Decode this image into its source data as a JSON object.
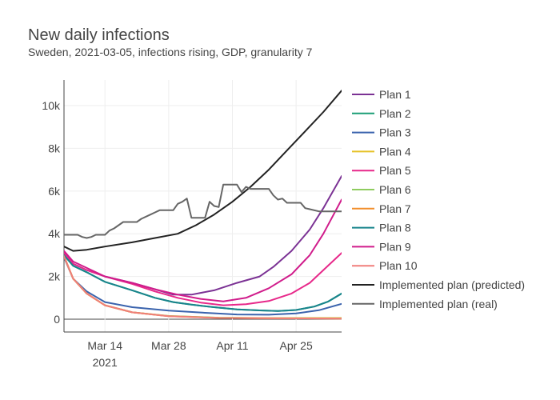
{
  "chart_data": {
    "type": "line",
    "title": "New daily infections",
    "subtitle": "Sweden, 2021-03-05, infections rising, GDP, granularity 7",
    "xlabel": "",
    "ylabel": "",
    "x_axis": {
      "type": "date",
      "range": [
        "2021-03-05",
        "2021-05-05"
      ],
      "ticks": [
        {
          "date": "2021-03-14",
          "label": "Mar 14",
          "sublabel": "2021"
        },
        {
          "date": "2021-03-28",
          "label": "Mar 28",
          "sublabel": ""
        },
        {
          "date": "2021-04-11",
          "label": "Apr 11",
          "sublabel": ""
        },
        {
          "date": "2021-04-25",
          "label": "Apr 25",
          "sublabel": ""
        }
      ]
    },
    "y_axis": {
      "range": [
        -600,
        11200
      ],
      "ticks": [
        {
          "value": 0,
          "label": "0"
        },
        {
          "value": 2000,
          "label": "2k"
        },
        {
          "value": 4000,
          "label": "4k"
        },
        {
          "value": 6000,
          "label": "6k"
        },
        {
          "value": 8000,
          "label": "8k"
        },
        {
          "value": 10000,
          "label": "10k"
        }
      ]
    },
    "grid": true,
    "legend_position": "right",
    "series": [
      {
        "name": "Plan 1",
        "color": "#7b3294",
        "x": [
          "2021-03-05",
          "2021-03-07",
          "2021-03-10",
          "2021-03-14",
          "2021-03-20",
          "2021-03-25",
          "2021-03-29",
          "2021-04-02",
          "2021-04-07",
          "2021-04-12",
          "2021-04-17",
          "2021-04-20",
          "2021-04-24",
          "2021-04-28",
          "2021-05-01",
          "2021-05-05"
        ],
        "y": [
          3150,
          2600,
          2300,
          2000,
          1700,
          1400,
          1150,
          1150,
          1350,
          1700,
          2000,
          2450,
          3200,
          4200,
          5200,
          6700
        ]
      },
      {
        "name": "Plan 2",
        "color": "#1b9e77",
        "x": [
          "2021-03-05",
          "2021-03-07",
          "2021-03-10",
          "2021-03-14",
          "2021-03-20",
          "2021-03-25",
          "2021-03-29",
          "2021-04-02",
          "2021-04-07",
          "2021-04-12",
          "2021-04-17",
          "2021-04-21",
          "2021-04-25",
          "2021-04-29",
          "2021-05-02",
          "2021-05-05"
        ],
        "y": [
          3000,
          2500,
          2200,
          1750,
          1350,
          1000,
          800,
          680,
          560,
          460,
          410,
          380,
          430,
          590,
          820,
          1200
        ]
      },
      {
        "name": "Plan 3",
        "color": "#3a63ad",
        "x": [
          "2021-03-05",
          "2021-03-07",
          "2021-03-10",
          "2021-03-14",
          "2021-03-20",
          "2021-03-28",
          "2021-04-05",
          "2021-04-12",
          "2021-04-19",
          "2021-04-25",
          "2021-04-30",
          "2021-05-05"
        ],
        "y": [
          2900,
          1900,
          1300,
          800,
          560,
          400,
          300,
          220,
          210,
          270,
          420,
          720
        ]
      },
      {
        "name": "Plan 4",
        "color": "#e6c229",
        "x": [
          "2021-03-05",
          "2021-03-07",
          "2021-03-10",
          "2021-03-14",
          "2021-03-20",
          "2021-03-28",
          "2021-04-08",
          "2021-04-20",
          "2021-05-05"
        ],
        "y": [
          2950,
          1900,
          1200,
          650,
          320,
          150,
          70,
          50,
          55
        ]
      },
      {
        "name": "Plan 5",
        "color": "#e7298a",
        "x": [
          "2021-03-05",
          "2021-03-07",
          "2021-03-10",
          "2021-03-14",
          "2021-03-20",
          "2021-03-25",
          "2021-03-30",
          "2021-04-04",
          "2021-04-09",
          "2021-04-14",
          "2021-04-19",
          "2021-04-24",
          "2021-04-28",
          "2021-05-01",
          "2021-05-05"
        ],
        "y": [
          3100,
          2600,
          2300,
          2000,
          1650,
          1300,
          1000,
          780,
          650,
          700,
          850,
          1200,
          1700,
          2300,
          3100
        ]
      },
      {
        "name": "Plan 6",
        "color": "#8fcc5f",
        "x": [
          "2021-03-05",
          "2021-03-07",
          "2021-03-10",
          "2021-03-14",
          "2021-03-20",
          "2021-03-28",
          "2021-04-08",
          "2021-04-20",
          "2021-05-05"
        ],
        "y": [
          2950,
          1900,
          1200,
          650,
          320,
          150,
          70,
          45,
          40
        ]
      },
      {
        "name": "Plan 7",
        "color": "#f28e2b",
        "x": [
          "2021-03-05",
          "2021-03-07",
          "2021-03-10",
          "2021-03-14",
          "2021-03-20",
          "2021-03-28",
          "2021-04-08",
          "2021-04-20",
          "2021-05-05"
        ],
        "y": [
          2950,
          1900,
          1200,
          650,
          320,
          140,
          60,
          40,
          30
        ]
      },
      {
        "name": "Plan 8",
        "color": "#18848c",
        "x": [
          "2021-03-05",
          "2021-03-07",
          "2021-03-10",
          "2021-03-14",
          "2021-03-20",
          "2021-03-25",
          "2021-03-29",
          "2021-04-02",
          "2021-04-07",
          "2021-04-12",
          "2021-04-17",
          "2021-04-21",
          "2021-04-25",
          "2021-04-29",
          "2021-05-02",
          "2021-05-05"
        ],
        "y": [
          3000,
          2500,
          2200,
          1750,
          1350,
          1000,
          800,
          680,
          560,
          460,
          410,
          380,
          430,
          590,
          820,
          1200
        ]
      },
      {
        "name": "Plan 9",
        "color": "#d01c8b",
        "x": [
          "2021-03-05",
          "2021-03-07",
          "2021-03-10",
          "2021-03-14",
          "2021-03-20",
          "2021-03-25",
          "2021-03-30",
          "2021-04-04",
          "2021-04-09",
          "2021-04-14",
          "2021-04-19",
          "2021-04-24",
          "2021-04-28",
          "2021-05-01",
          "2021-05-05"
        ],
        "y": [
          3200,
          2700,
          2400,
          2000,
          1700,
          1400,
          1150,
          950,
          830,
          1000,
          1450,
          2100,
          3000,
          4000,
          5600
        ]
      },
      {
        "name": "Plan 10",
        "color": "#f07f7a",
        "x": [
          "2021-03-05",
          "2021-03-07",
          "2021-03-10",
          "2021-03-14",
          "2021-03-20",
          "2021-03-28",
          "2021-04-08",
          "2021-04-20",
          "2021-05-05"
        ],
        "y": [
          2950,
          1900,
          1200,
          650,
          320,
          140,
          60,
          40,
          30
        ]
      },
      {
        "name": "Implemented plan (predicted)",
        "color": "#222222",
        "x": [
          "2021-03-05",
          "2021-03-07",
          "2021-03-10",
          "2021-03-14",
          "2021-03-20",
          "2021-03-25",
          "2021-03-30",
          "2021-04-03",
          "2021-04-07",
          "2021-04-11",
          "2021-04-15",
          "2021-04-19",
          "2021-04-23",
          "2021-04-27",
          "2021-05-01",
          "2021-05-05"
        ],
        "y": [
          3400,
          3200,
          3250,
          3400,
          3600,
          3800,
          4000,
          4400,
          4900,
          5500,
          6200,
          7000,
          7900,
          8800,
          9700,
          10700
        ]
      },
      {
        "name": "Implemented plan (real)",
        "color": "#666666",
        "x": [
          "2021-03-05",
          "2021-03-07",
          "2021-03-08",
          "2021-03-09",
          "2021-03-10",
          "2021-03-11",
          "2021-03-12",
          "2021-03-14",
          "2021-03-15",
          "2021-03-16",
          "2021-03-17",
          "2021-03-18",
          "2021-03-20",
          "2021-03-21",
          "2021-03-22",
          "2021-03-24",
          "2021-03-25",
          "2021-03-26",
          "2021-03-27",
          "2021-03-29",
          "2021-03-30",
          "2021-03-31",
          "2021-04-01",
          "2021-04-02",
          "2021-04-03",
          "2021-04-05",
          "2021-04-06",
          "2021-04-07",
          "2021-04-08",
          "2021-04-09",
          "2021-04-10",
          "2021-04-11",
          "2021-04-12",
          "2021-04-13",
          "2021-04-14",
          "2021-04-15",
          "2021-04-16",
          "2021-04-17",
          "2021-04-18",
          "2021-04-19",
          "2021-04-20",
          "2021-04-21",
          "2021-04-22",
          "2021-04-23",
          "2021-04-24",
          "2021-04-25",
          "2021-04-26",
          "2021-04-27",
          "2021-04-28",
          "2021-04-30",
          "2021-05-01",
          "2021-05-02",
          "2021-05-05"
        ],
        "y": [
          3950,
          3950,
          3950,
          3850,
          3800,
          3850,
          3950,
          3950,
          4150,
          4250,
          4400,
          4550,
          4550,
          4550,
          4700,
          4900,
          5000,
          5100,
          5100,
          5100,
          5400,
          5500,
          5650,
          4750,
          4750,
          4750,
          5500,
          5300,
          5250,
          6300,
          6300,
          6300,
          6300,
          5950,
          6200,
          6100,
          6100,
          6100,
          6100,
          6100,
          5800,
          5600,
          5650,
          5450,
          5450,
          5450,
          5450,
          5200,
          5150,
          5050,
          5050,
          5050,
          5050
        ]
      }
    ]
  }
}
